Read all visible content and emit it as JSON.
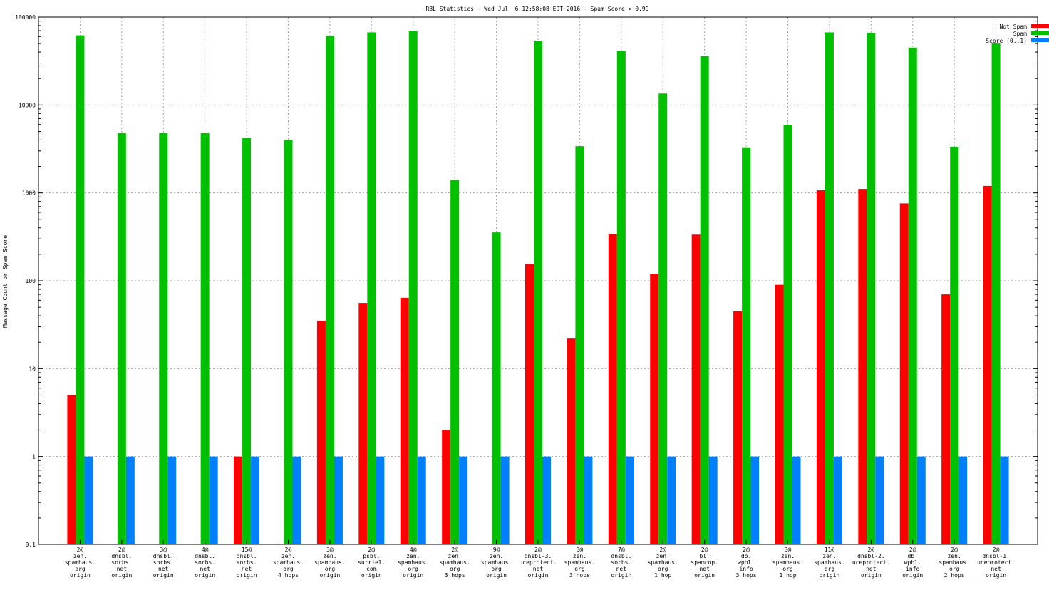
{
  "chart_data": {
    "type": "bar",
    "title": "RBL Statistics - Wed Jul  6 12:58:08 EDT 2016 - Spam Score > 0.99",
    "ylabel": "Message Count or Spam Score",
    "xlabel": "",
    "yscale": "log",
    "ylim": [
      0.1,
      100000
    ],
    "y_ticks": [
      "0.1",
      "1",
      "10",
      "100",
      "1000",
      "10000",
      "100000"
    ],
    "y_tick_values": [
      0.1,
      1,
      10,
      100,
      1000,
      10000,
      100000
    ],
    "grid": true,
    "legend_position": "top-right",
    "categories": [
      [
        "2@",
        "zen.",
        "spamhaus.",
        "org",
        "origin"
      ],
      [
        "2@",
        "dnsbl.",
        "sorbs.",
        "net",
        "origin"
      ],
      [
        "3@",
        "dnsbl.",
        "sorbs.",
        "net",
        "origin"
      ],
      [
        "4@",
        "dnsbl.",
        "sorbs.",
        "net",
        "origin"
      ],
      [
        "15@",
        "dnsbl.",
        "sorbs.",
        "net",
        "origin"
      ],
      [
        "2@",
        "zen.",
        "spamhaus.",
        "org",
        "4 hops"
      ],
      [
        "3@",
        "zen.",
        "spamhaus.",
        "org",
        "origin"
      ],
      [
        "2@",
        "psbl.",
        "surriel.",
        "com",
        "origin"
      ],
      [
        "4@",
        "zen.",
        "spamhaus.",
        "org",
        "origin"
      ],
      [
        "2@",
        "zen.",
        "spamhaus.",
        "org",
        "3 hops"
      ],
      [
        "9@",
        "zen.",
        "spamhaus.",
        "org",
        "origin"
      ],
      [
        "2@",
        "dnsbl-3.",
        "uceprotect.",
        "net",
        "origin"
      ],
      [
        "3@",
        "zen.",
        "spamhaus.",
        "org",
        "3 hops"
      ],
      [
        "7@",
        "dnsbl.",
        "sorbs.",
        "net",
        "origin"
      ],
      [
        "2@",
        "zen.",
        "spamhaus.",
        "org",
        "1 hop"
      ],
      [
        "2@",
        "bl.",
        "spamcop.",
        "net",
        "origin"
      ],
      [
        "2@",
        "db.",
        "wpbl.",
        "info",
        "3 hops"
      ],
      [
        "3@",
        "zen.",
        "spamhaus.",
        "org",
        "1 hop"
      ],
      [
        "11@",
        "zen.",
        "spamhaus.",
        "org",
        "origin"
      ],
      [
        "2@",
        "dnsbl-2.",
        "uceprotect.",
        "net",
        "origin"
      ],
      [
        "2@",
        "db.",
        "wpbl.",
        "info",
        "origin"
      ],
      [
        "2@",
        "zen.",
        "spamhaus.",
        "org",
        "2 hops"
      ],
      [
        "2@",
        "dnsbl-1.",
        "uceprotect.",
        "net",
        "origin"
      ]
    ],
    "series": [
      {
        "name": "Not Spam",
        "color": "#ff0000",
        "values": [
          5,
          null,
          null,
          null,
          1,
          null,
          35,
          56,
          64,
          2,
          null,
          155,
          22,
          340,
          120,
          335,
          45,
          90,
          1070,
          1110,
          760,
          70,
          1200
        ]
      },
      {
        "name": "Spam",
        "color": "#00c000",
        "values": [
          62000,
          4800,
          4800,
          4800,
          4200,
          4000,
          61000,
          67000,
          69000,
          1400,
          355,
          53000,
          3400,
          41000,
          13500,
          36000,
          3300,
          5900,
          67000,
          66000,
          45000,
          3350,
          50000
        ]
      },
      {
        "name": "Score (0..1)",
        "color": "#0080ff",
        "values": [
          1,
          1,
          1,
          1,
          1,
          1,
          1,
          1,
          1,
          1,
          1,
          1,
          1,
          1,
          1,
          1,
          1,
          1,
          1,
          1,
          1,
          1,
          1
        ]
      }
    ]
  }
}
